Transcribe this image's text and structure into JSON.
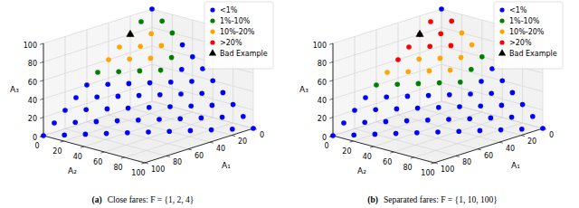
{
  "chart_data": [
    {
      "type": "scatter3d",
      "label": "(a)",
      "caption": "Close fares: F = {1, 2, 4}",
      "xlabel": "A₁",
      "ylabel": "A₂",
      "zlabel": "A₃",
      "xlim": [
        0,
        100
      ],
      "ylim": [
        0,
        100
      ],
      "zlim": [
        0,
        100
      ],
      "xticks": [
        0,
        20,
        40,
        60,
        80,
        100
      ],
      "yticks": [
        0,
        20,
        40,
        60,
        80,
        100
      ],
      "zticks": [
        0,
        20,
        40,
        60,
        80,
        100
      ],
      "grid": true,
      "legend": "upper right",
      "series": [
        {
          "name": "<1%",
          "color": "#0000ff",
          "marker": "circle",
          "values": [
            [
              0,
              0,
              100
            ],
            [
              0,
              30,
              70
            ],
            [
              0,
              40,
              60
            ],
            [
              0,
              50,
              50
            ],
            [
              0,
              60,
              40
            ],
            [
              0,
              70,
              30
            ],
            [
              0,
              80,
              20
            ],
            [
              0,
              90,
              10
            ],
            [
              0,
              100,
              0
            ],
            [
              10,
              40,
              50
            ],
            [
              10,
              50,
              40
            ],
            [
              10,
              60,
              30
            ],
            [
              10,
              70,
              20
            ],
            [
              10,
              80,
              10
            ],
            [
              10,
              90,
              0
            ],
            [
              20,
              40,
              40
            ],
            [
              20,
              50,
              30
            ],
            [
              20,
              60,
              20
            ],
            [
              20,
              70,
              10
            ],
            [
              20,
              80,
              0
            ],
            [
              30,
              30,
              40
            ],
            [
              30,
              40,
              30
            ],
            [
              30,
              50,
              20
            ],
            [
              30,
              60,
              10
            ],
            [
              30,
              70,
              0
            ],
            [
              40,
              20,
              40
            ],
            [
              40,
              30,
              30
            ],
            [
              40,
              40,
              20
            ],
            [
              40,
              50,
              10
            ],
            [
              40,
              60,
              0
            ],
            [
              50,
              10,
              40
            ],
            [
              50,
              20,
              30
            ],
            [
              50,
              30,
              20
            ],
            [
              50,
              40,
              10
            ],
            [
              50,
              50,
              0
            ],
            [
              60,
              0,
              40
            ],
            [
              60,
              10,
              30
            ],
            [
              60,
              20,
              20
            ],
            [
              60,
              30,
              10
            ],
            [
              60,
              40,
              0
            ],
            [
              70,
              0,
              30
            ],
            [
              70,
              10,
              20
            ],
            [
              70,
              20,
              10
            ],
            [
              70,
              30,
              0
            ],
            [
              80,
              0,
              20
            ],
            [
              80,
              10,
              10
            ],
            [
              80,
              20,
              0
            ],
            [
              90,
              0,
              10
            ],
            [
              90,
              10,
              0
            ],
            [
              100,
              0,
              0
            ]
          ]
        },
        {
          "name": "1%-10%",
          "color": "#008000",
          "marker": "circle",
          "values": [
            [
              10,
              0,
              90
            ],
            [
              0,
              10,
              90
            ],
            [
              50,
              0,
              50
            ],
            [
              40,
              10,
              50
            ],
            [
              30,
              20,
              50
            ],
            [
              10,
              30,
              60
            ],
            [
              0,
              20,
              80
            ],
            [
              20,
              30,
              50
            ]
          ]
        },
        {
          "name": "10%-20%",
          "color": "#ffa500",
          "marker": "circle",
          "values": [
            [
              20,
              0,
              80
            ],
            [
              30,
              0,
              70
            ],
            [
              40,
              0,
              60
            ],
            [
              10,
              10,
              80
            ],
            [
              20,
              10,
              70
            ],
            [
              30,
              10,
              60
            ],
            [
              10,
              20,
              70
            ],
            [
              20,
              20,
              60
            ]
          ]
        },
        {
          "name": ">20%",
          "color": "#ff0000",
          "marker": "circle",
          "values": []
        },
        {
          "name": "Bad Example",
          "color": "#000000",
          "marker": "triangle",
          "values": [
            [
              20,
              0,
              80
            ]
          ]
        }
      ]
    },
    {
      "type": "scatter3d",
      "label": "(b)",
      "caption": "Separated fares: F = {1, 10, 100}",
      "xlabel": "A₁",
      "ylabel": "A₂",
      "zlabel": "A₃",
      "xlim": [
        0,
        100
      ],
      "ylim": [
        0,
        100
      ],
      "zlim": [
        0,
        100
      ],
      "xticks": [
        0,
        20,
        40,
        60,
        80,
        100
      ],
      "yticks": [
        0,
        20,
        40,
        60,
        80,
        100
      ],
      "zticks": [
        0,
        20,
        40,
        60,
        80,
        100
      ],
      "grid": true,
      "legend": "upper right",
      "series": [
        {
          "name": "<1%",
          "color": "#0000ff",
          "marker": "circle",
          "values": [
            [
              0,
              0,
              100
            ],
            [
              0,
              50,
              50
            ],
            [
              0,
              60,
              40
            ],
            [
              0,
              70,
              30
            ],
            [
              0,
              80,
              20
            ],
            [
              0,
              90,
              10
            ],
            [
              0,
              100,
              0
            ],
            [
              10,
              50,
              40
            ],
            [
              10,
              60,
              30
            ],
            [
              10,
              70,
              20
            ],
            [
              10,
              80,
              10
            ],
            [
              10,
              90,
              0
            ],
            [
              20,
              50,
              30
            ],
            [
              20,
              60,
              20
            ],
            [
              20,
              70,
              10
            ],
            [
              20,
              80,
              0
            ],
            [
              30,
              40,
              30
            ],
            [
              30,
              50,
              20
            ],
            [
              30,
              60,
              10
            ],
            [
              30,
              70,
              0
            ],
            [
              40,
              30,
              30
            ],
            [
              40,
              40,
              20
            ],
            [
              40,
              50,
              10
            ],
            [
              40,
              60,
              0
            ],
            [
              50,
              20,
              30
            ],
            [
              50,
              30,
              20
            ],
            [
              50,
              40,
              10
            ],
            [
              50,
              50,
              0
            ],
            [
              60,
              10,
              30
            ],
            [
              60,
              20,
              20
            ],
            [
              60,
              30,
              10
            ],
            [
              60,
              40,
              0
            ],
            [
              70,
              0,
              30
            ],
            [
              70,
              10,
              20
            ],
            [
              70,
              20,
              10
            ],
            [
              70,
              30,
              0
            ],
            [
              80,
              0,
              20
            ],
            [
              80,
              10,
              10
            ],
            [
              80,
              20,
              0
            ],
            [
              90,
              0,
              10
            ],
            [
              90,
              10,
              0
            ],
            [
              100,
              0,
              0
            ]
          ]
        },
        {
          "name": "1%-10%",
          "color": "#008000",
          "marker": "circle",
          "values": [
            [
              60,
              0,
              40
            ],
            [
              50,
              10,
              40
            ],
            [
              40,
              20,
              40
            ],
            [
              30,
              30,
              40
            ],
            [
              20,
              40,
              40
            ],
            [
              10,
              40,
              50
            ],
            [
              0,
              40,
              60
            ]
          ]
        },
        {
          "name": "10%-20%",
          "color": "#ffa500",
          "marker": "circle",
          "values": [
            [
              50,
              0,
              50
            ],
            [
              40,
              10,
              50
            ],
            [
              30,
              10,
              60
            ],
            [
              30,
              20,
              50
            ],
            [
              20,
              20,
              60
            ],
            [
              20,
              30,
              50
            ],
            [
              10,
              30,
              60
            ],
            [
              0,
              20,
              80
            ],
            [
              0,
              30,
              70
            ]
          ]
        },
        {
          "name": ">20%",
          "color": "#ff0000",
          "marker": "circle",
          "values": [
            [
              10,
              0,
              90
            ],
            [
              20,
              0,
              80
            ],
            [
              30,
              0,
              70
            ],
            [
              40,
              0,
              60
            ],
            [
              0,
              10,
              90
            ],
            [
              10,
              10,
              80
            ],
            [
              20,
              10,
              70
            ],
            [
              10,
              20,
              70
            ]
          ]
        },
        {
          "name": "Bad Example",
          "color": "#000000",
          "marker": "triangle",
          "values": [
            [
              20,
              0,
              80
            ]
          ]
        }
      ]
    }
  ]
}
